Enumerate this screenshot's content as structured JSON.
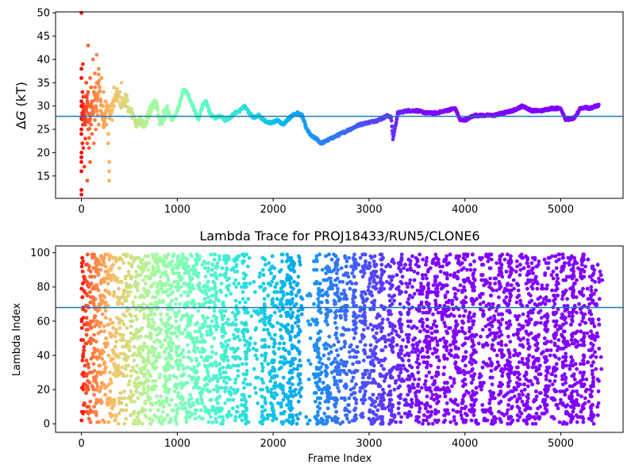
{
  "chart_data": [
    {
      "type": "scatter",
      "title": "",
      "xlabel": "",
      "ylabel": "ΔG (kT)",
      "ylabel_parts": {
        "symbol": "Δ",
        "var": "G",
        "unit": " (kT)"
      },
      "xlim": [
        -270,
        5650
      ],
      "ylim": [
        10.2,
        50.2
      ],
      "xticks": [
        0,
        1000,
        2000,
        3000,
        4000,
        5000
      ],
      "yticks": [
        15,
        20,
        25,
        30,
        35,
        40,
        45,
        50
      ],
      "colormap": "rainbow (red at frame 0 → violet at late frames)",
      "hline": {
        "y": 27.8,
        "color": "#1f77b4"
      },
      "trajectory": {
        "x": [
          0,
          20,
          40,
          60,
          80,
          100,
          120,
          140,
          160,
          180,
          200,
          230,
          260,
          300,
          340,
          380,
          420,
          460,
          500,
          540,
          580,
          620,
          660,
          700,
          740,
          780,
          820,
          860,
          900,
          940,
          980,
          1020,
          1060,
          1100,
          1140,
          1180,
          1220,
          1260,
          1300,
          1350,
          1400,
          1450,
          1500,
          1550,
          1600,
          1650,
          1700,
          1750,
          1800,
          1850,
          1900,
          1950,
          2000,
          2050,
          2100,
          2150,
          2200,
          2250,
          2300,
          2350,
          2400,
          2450,
          2500,
          2550,
          2600,
          2700,
          2800,
          2900,
          3000,
          3100,
          3150,
          3200,
          3230,
          3250,
          3300,
          3400,
          3500,
          3600,
          3700,
          3800,
          3900,
          3950,
          4000,
          4100,
          4200,
          4300,
          4400,
          4500,
          4550,
          4600,
          4650,
          4700,
          4800,
          4900,
          4950,
          5000,
          5050,
          5100,
          5150,
          5200,
          5250,
          5300,
          5400
        ],
        "y": [
          27,
          30,
          26,
          33,
          24,
          30,
          28,
          34,
          29,
          36,
          31,
          26,
          30,
          28,
          31,
          33,
          30,
          32,
          29,
          28,
          26,
          27,
          26,
          28,
          30,
          31,
          26,
          28,
          29,
          27,
          28,
          30,
          33.5,
          33,
          31,
          29,
          27,
          30,
          31,
          28,
          27.5,
          28,
          27,
          27.5,
          28.5,
          29,
          30,
          28.5,
          27.5,
          28,
          27,
          26.5,
          26.5,
          27,
          26,
          27,
          28,
          28.5,
          28,
          25,
          23.5,
          23,
          22,
          22.5,
          23,
          24,
          25,
          26,
          26.5,
          27,
          27.5,
          28,
          27.5,
          23,
          28.5,
          29,
          29,
          28.5,
          28.5,
          29,
          29.5,
          27,
          27,
          28,
          28,
          28,
          28.5,
          29,
          29.5,
          30,
          29.5,
          29,
          29,
          29.5,
          29.5,
          29.5,
          27.2,
          27.2,
          27.5,
          29.5,
          29.7,
          29.5,
          30.2
        ]
      },
      "early_scatter": [
        [
          0,
          50
        ],
        [
          0,
          36
        ],
        [
          0,
          38
        ],
        [
          0,
          31
        ],
        [
          0,
          30
        ],
        [
          0,
          25
        ],
        [
          0,
          24
        ],
        [
          0,
          20
        ],
        [
          0,
          19
        ],
        [
          0,
          18
        ],
        [
          0,
          16
        ],
        [
          0,
          12
        ],
        [
          0,
          11
        ],
        [
          10,
          33
        ],
        [
          10,
          28
        ],
        [
          10,
          22
        ],
        [
          15,
          39
        ],
        [
          15,
          26
        ],
        [
          20,
          32
        ],
        [
          20,
          29
        ],
        [
          20,
          21
        ],
        [
          25,
          27
        ],
        [
          30,
          30
        ],
        [
          30,
          17
        ],
        [
          40,
          32
        ],
        [
          40,
          26
        ],
        [
          40,
          23
        ],
        [
          50,
          35
        ],
        [
          50,
          29
        ],
        [
          60,
          31
        ],
        [
          60,
          27
        ],
        [
          60,
          22
        ],
        [
          60,
          14
        ],
        [
          70,
          43
        ],
        [
          70,
          33
        ],
        [
          70,
          25
        ],
        [
          80,
          30
        ],
        [
          80,
          21
        ],
        [
          90,
          36
        ],
        [
          90,
          28
        ],
        [
          90,
          18
        ],
        [
          100,
          34
        ],
        [
          100,
          26
        ],
        [
          110,
          31
        ],
        [
          110,
          24
        ],
        [
          120,
          40
        ],
        [
          120,
          29
        ],
        [
          130,
          33
        ],
        [
          130,
          22
        ],
        [
          140,
          37
        ],
        [
          140,
          27
        ],
        [
          150,
          30
        ],
        [
          150,
          25
        ],
        [
          160,
          41
        ],
        [
          160,
          35
        ],
        [
          170,
          32
        ],
        [
          170,
          28
        ],
        [
          180,
          38
        ],
        [
          180,
          26
        ],
        [
          190,
          34
        ],
        [
          200,
          31
        ],
        [
          200,
          29
        ],
        [
          210,
          36
        ],
        [
          220,
          30
        ],
        [
          230,
          33
        ],
        [
          240,
          28
        ],
        [
          250,
          31
        ],
        [
          260,
          26
        ],
        [
          270,
          29
        ],
        [
          280,
          24
        ],
        [
          280,
          22
        ],
        [
          290,
          18
        ],
        [
          290,
          16
        ],
        [
          290,
          14
        ],
        [
          300,
          30
        ],
        [
          320,
          27
        ],
        [
          340,
          34
        ],
        [
          360,
          32
        ],
        [
          380,
          31
        ],
        [
          400,
          33
        ],
        [
          420,
          35
        ],
        [
          440,
          31
        ],
        [
          460,
          30
        ]
      ]
    },
    {
      "type": "scatter",
      "title": "Lambda Trace for PROJ18433/RUN5/CLONE6",
      "xlabel": "Frame Index",
      "ylabel": "Lambda Index",
      "xlim": [
        -270,
        5650
      ],
      "ylim": [
        -5,
        104
      ],
      "xticks": [
        0,
        1000,
        2000,
        3000,
        4000,
        5000
      ],
      "yticks": [
        0,
        20,
        40,
        60,
        80,
        100
      ],
      "colormap": "rainbow (red at frame 0 → violet at late frames)",
      "hline": {
        "y": 68,
        "color": "#1f77b4"
      },
      "x_range": [
        0,
        5400
      ],
      "y_range": [
        0,
        99
      ],
      "point_count": 6000,
      "sparse_bands": [
        [
          1760,
          1860
        ],
        [
          2300,
          2420
        ],
        [
          3870,
          3900
        ],
        [
          4120,
          4150
        ]
      ],
      "note_markers": "dense uniform scatter of lambda indices 0–99 across frames"
    }
  ]
}
